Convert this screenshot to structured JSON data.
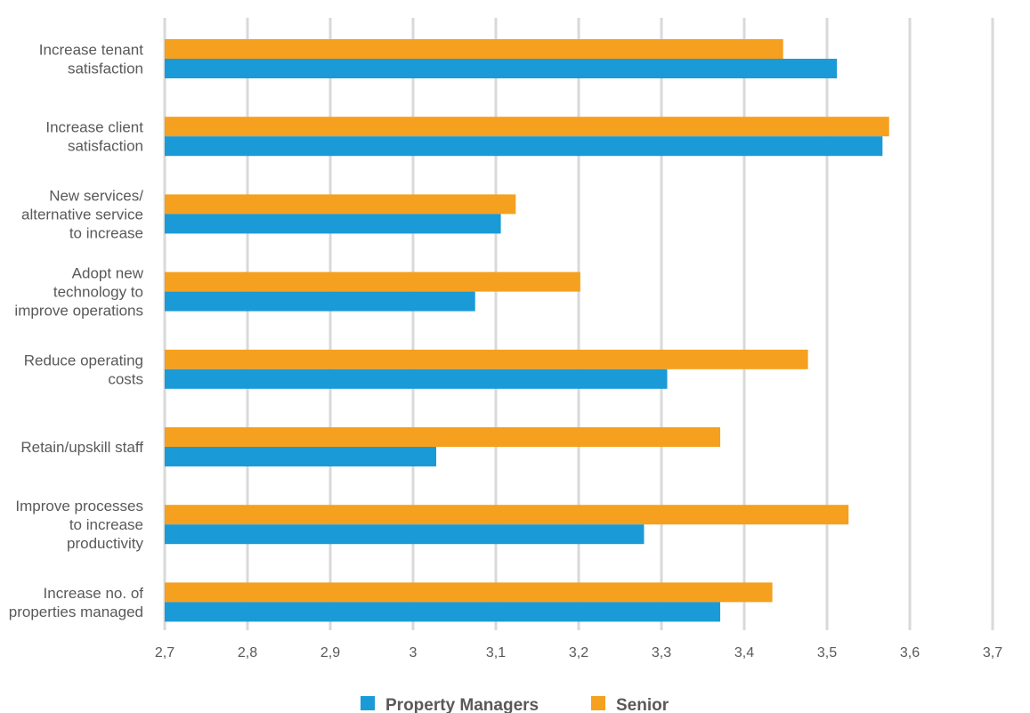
{
  "chart_data": {
    "type": "bar",
    "orientation": "horizontal",
    "categories": [
      [
        "Increase tenant",
        "satisfaction"
      ],
      [
        "Increase client",
        "satisfaction"
      ],
      [
        "New services/",
        "alternative service",
        "to increase"
      ],
      [
        "Adopt new",
        "technology to",
        "improve operations"
      ],
      [
        "Reduce operating",
        "costs"
      ],
      [
        "Retain/upskill staff"
      ],
      [
        "Improve processes",
        "to increase",
        "productivity"
      ],
      [
        "Increase no. of",
        "properties managed"
      ]
    ],
    "series": [
      {
        "name": "Senior",
        "color": "#F5A01E",
        "values": [
          3.447,
          3.575,
          3.124,
          3.202,
          3.477,
          3.371,
          3.526,
          3.434
        ]
      },
      {
        "name": "Property Managers",
        "color": "#1B9AD8",
        "values": [
          3.512,
          3.567,
          3.106,
          3.075,
          3.307,
          3.028,
          3.279,
          3.371
        ]
      }
    ],
    "xlim": [
      2.7,
      3.7
    ],
    "xticks": [
      "2,7",
      "2,8",
      "2,9",
      "3",
      "3,1",
      "3,2",
      "3,3",
      "3,4",
      "3,5",
      "3,6",
      "3,7"
    ],
    "grid": true,
    "legend": {
      "position": "bottom",
      "entries": [
        {
          "name": "Property Managers",
          "color": "#1B9AD8"
        },
        {
          "name": "Senior",
          "color": "#F5A01E"
        }
      ]
    },
    "gridline_color": "#D9D9D9"
  }
}
